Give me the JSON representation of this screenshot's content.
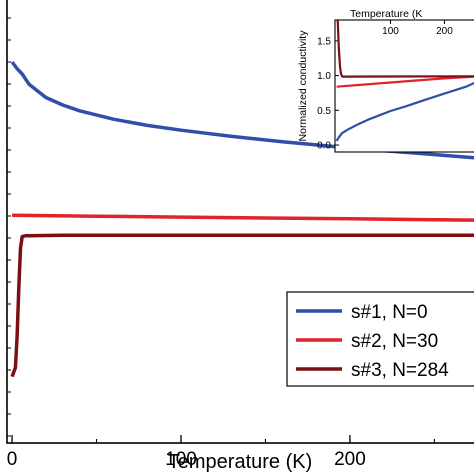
{
  "chart_data": [
    {
      "type": "line",
      "xlabel": "Temperature (K)",
      "ylabel": "",
      "xlim": [
        -3,
        277
      ],
      "ylim": [
        0,
        1.0
      ],
      "x_ticks": [
        0,
        100,
        200
      ],
      "x_tick_labels": [
        "0",
        "100",
        "200"
      ],
      "legend_position": "bottom-right",
      "series": [
        {
          "name": "s#1, N=0",
          "color": "#2f4fa8",
          "x": [
            0,
            3,
            6,
            10,
            20,
            30,
            40,
            60,
            80,
            100,
            130,
            160,
            200,
            240,
            277
          ],
          "y": [
            0.86,
            0.845,
            0.833,
            0.81,
            0.78,
            0.763,
            0.75,
            0.731,
            0.717,
            0.706,
            0.692,
            0.68,
            0.666,
            0.654,
            0.643
          ]
        },
        {
          "name": "s#2, N=30",
          "color": "#e0242b",
          "x": [
            0,
            50,
            100,
            150,
            200,
            250,
            277
          ],
          "y": [
            0.514,
            0.512,
            0.51,
            0.508,
            0.506,
            0.504,
            0.503
          ]
        },
        {
          "name": "s#3, N=284",
          "color": "#7b0f13",
          "x": [
            0,
            2,
            3,
            4,
            5,
            6,
            8,
            10,
            30,
            100,
            200,
            277
          ],
          "y": [
            0.15,
            0.17,
            0.24,
            0.35,
            0.44,
            0.466,
            0.468,
            0.468,
            0.469,
            0.469,
            0.469,
            0.469
          ]
        }
      ]
    },
    {
      "type": "line",
      "xlabel": "Temperature (K",
      "ylabel": "Normalized conductivity",
      "xlim": [
        -3,
        266
      ],
      "ylim": [
        -0.1,
        1.8
      ],
      "x_ticks": [
        100,
        200
      ],
      "x_tick_labels": [
        "100",
        "200"
      ],
      "y_ticks": [
        0.0,
        0.5,
        1.0,
        1.5
      ],
      "y_tick_labels": [
        "0.0",
        "0.5",
        "1.0",
        "1.5"
      ],
      "series": [
        {
          "name": "",
          "color": "#2f4fa8",
          "x": [
            0,
            5,
            10,
            20,
            40,
            60,
            80,
            100,
            130,
            160,
            200,
            240,
            266
          ],
          "y": [
            0.06,
            0.12,
            0.17,
            0.22,
            0.3,
            0.37,
            0.43,
            0.49,
            0.56,
            0.64,
            0.74,
            0.84,
            0.93
          ]
        },
        {
          "name": "",
          "color": "#e0242b",
          "x": [
            0,
            50,
            100,
            150,
            200,
            266
          ],
          "y": [
            0.84,
            0.87,
            0.9,
            0.93,
            0.96,
            0.99
          ]
        },
        {
          "name": "",
          "color": "#7b0f13",
          "x": [
            2,
            4,
            6,
            8,
            10,
            12,
            15,
            266
          ],
          "y": [
            1.8,
            1.4,
            1.15,
            1.03,
            0.99,
            0.985,
            0.985,
            0.99
          ]
        }
      ]
    }
  ]
}
